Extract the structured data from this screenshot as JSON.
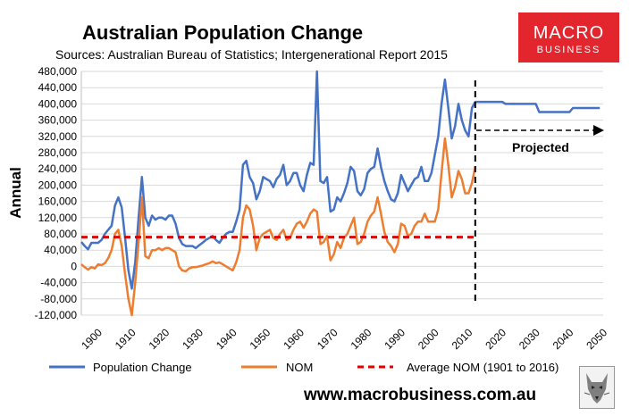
{
  "header": {
    "title": "Australian Population Change",
    "subtitle": "Sources: Australian Bureau of Statistics; Intergenerational Report 2015"
  },
  "brand": {
    "logo_top": "MACRO",
    "logo_bottom": "BUSINESS",
    "logo_color": "#e3262e",
    "url": "www.macrobusiness.com.au"
  },
  "colors": {
    "population_change": "#4472c4",
    "nom": "#ed7d31",
    "average": "#e00000",
    "grid": "#d9d9d9"
  },
  "chart_data": {
    "type": "line",
    "ylabel": "Annual",
    "ylim": [
      -120000,
      480000
    ],
    "xlim": [
      1900,
      2055
    ],
    "y_ticks": [
      "480,000",
      "440,000",
      "400,000",
      "360,000",
      "320,000",
      "280,000",
      "240,000",
      "200,000",
      "160,000",
      "120,000",
      "80,000",
      "40,000",
      "0",
      "-40,000",
      "-80,000",
      "-120,000"
    ],
    "x_ticks": [
      "1900",
      "1910",
      "1920",
      "1930",
      "1940",
      "1950",
      "1960",
      "1970",
      "1980",
      "1990",
      "2000",
      "2010",
      "2020",
      "2030",
      "2040",
      "2050"
    ],
    "grid": true,
    "legend_position": "bottom",
    "series": [
      {
        "name": "Population Change",
        "points": [
          [
            1900,
            60000
          ],
          [
            1901,
            50000
          ],
          [
            1902,
            42000
          ],
          [
            1903,
            58000
          ],
          [
            1904,
            58000
          ],
          [
            1905,
            58000
          ],
          [
            1906,
            65000
          ],
          [
            1907,
            80000
          ],
          [
            1908,
            90000
          ],
          [
            1909,
            100000
          ],
          [
            1910,
            150000
          ],
          [
            1911,
            170000
          ],
          [
            1912,
            145000
          ],
          [
            1913,
            70000
          ],
          [
            1914,
            -10000
          ],
          [
            1915,
            -55000
          ],
          [
            1916,
            10000
          ],
          [
            1917,
            120000
          ],
          [
            1918,
            220000
          ],
          [
            1919,
            120000
          ],
          [
            1920,
            100000
          ],
          [
            1921,
            125000
          ],
          [
            1922,
            115000
          ],
          [
            1923,
            120000
          ],
          [
            1924,
            120000
          ],
          [
            1925,
            115000
          ],
          [
            1926,
            125000
          ],
          [
            1927,
            125000
          ],
          [
            1928,
            105000
          ],
          [
            1929,
            70000
          ],
          [
            1930,
            55000
          ],
          [
            1931,
            50000
          ],
          [
            1932,
            50000
          ],
          [
            1933,
            50000
          ],
          [
            1934,
            45000
          ],
          [
            1935,
            52000
          ],
          [
            1936,
            58000
          ],
          [
            1937,
            65000
          ],
          [
            1938,
            70000
          ],
          [
            1939,
            75000
          ],
          [
            1940,
            65000
          ],
          [
            1941,
            58000
          ],
          [
            1942,
            70000
          ],
          [
            1943,
            80000
          ],
          [
            1944,
            85000
          ],
          [
            1945,
            85000
          ],
          [
            1946,
            110000
          ],
          [
            1947,
            140000
          ],
          [
            1948,
            250000
          ],
          [
            1949,
            260000
          ],
          [
            1950,
            220000
          ],
          [
            1951,
            205000
          ],
          [
            1952,
            165000
          ],
          [
            1953,
            185000
          ],
          [
            1954,
            220000
          ],
          [
            1955,
            215000
          ],
          [
            1956,
            210000
          ],
          [
            1957,
            195000
          ],
          [
            1958,
            215000
          ],
          [
            1959,
            225000
          ],
          [
            1960,
            250000
          ],
          [
            1961,
            200000
          ],
          [
            1962,
            210000
          ],
          [
            1963,
            230000
          ],
          [
            1964,
            230000
          ],
          [
            1965,
            200000
          ],
          [
            1966,
            185000
          ],
          [
            1967,
            225000
          ],
          [
            1968,
            255000
          ],
          [
            1969,
            250000
          ],
          [
            1970,
            480000
          ],
          [
            1971,
            210000
          ],
          [
            1972,
            205000
          ],
          [
            1973,
            220000
          ],
          [
            1974,
            135000
          ],
          [
            1975,
            140000
          ],
          [
            1976,
            170000
          ],
          [
            1977,
            160000
          ],
          [
            1978,
            180000
          ],
          [
            1979,
            205000
          ],
          [
            1980,
            245000
          ],
          [
            1981,
            235000
          ],
          [
            1982,
            185000
          ],
          [
            1983,
            175000
          ],
          [
            1984,
            190000
          ],
          [
            1985,
            230000
          ],
          [
            1986,
            240000
          ],
          [
            1987,
            245000
          ],
          [
            1988,
            290000
          ],
          [
            1989,
            245000
          ],
          [
            1990,
            210000
          ],
          [
            1991,
            185000
          ],
          [
            1992,
            165000
          ],
          [
            1993,
            160000
          ],
          [
            1994,
            180000
          ],
          [
            1995,
            225000
          ],
          [
            1996,
            205000
          ],
          [
            1997,
            185000
          ],
          [
            1998,
            200000
          ],
          [
            1999,
            215000
          ],
          [
            2000,
            220000
          ],
          [
            2001,
            245000
          ],
          [
            2002,
            210000
          ],
          [
            2003,
            210000
          ],
          [
            2004,
            230000
          ],
          [
            2005,
            275000
          ],
          [
            2006,
            320000
          ],
          [
            2007,
            400000
          ],
          [
            2008,
            460000
          ],
          [
            2009,
            390000
          ],
          [
            2010,
            315000
          ],
          [
            2011,
            345000
          ],
          [
            2012,
            400000
          ],
          [
            2013,
            360000
          ],
          [
            2014,
            335000
          ],
          [
            2015,
            320000
          ],
          [
            2016,
            390000
          ],
          [
            2017,
            405000
          ],
          [
            2020,
            405000
          ],
          [
            2025,
            405000
          ],
          [
            2026,
            400000
          ],
          [
            2035,
            400000
          ],
          [
            2036,
            380000
          ],
          [
            2045,
            380000
          ],
          [
            2046,
            390000
          ],
          [
            2054,
            390000
          ]
        ]
      },
      {
        "name": "NOM",
        "points": [
          [
            1900,
            5000
          ],
          [
            1901,
            -2000
          ],
          [
            1902,
            -8000
          ],
          [
            1903,
            -2000
          ],
          [
            1904,
            -5000
          ],
          [
            1905,
            5000
          ],
          [
            1906,
            3000
          ],
          [
            1907,
            8000
          ],
          [
            1908,
            20000
          ],
          [
            1909,
            40000
          ],
          [
            1910,
            80000
          ],
          [
            1911,
            90000
          ],
          [
            1912,
            50000
          ],
          [
            1913,
            -20000
          ],
          [
            1914,
            -80000
          ],
          [
            1915,
            -120000
          ],
          [
            1916,
            -40000
          ],
          [
            1917,
            60000
          ],
          [
            1918,
            170000
          ],
          [
            1919,
            25000
          ],
          [
            1920,
            20000
          ],
          [
            1921,
            40000
          ],
          [
            1922,
            40000
          ],
          [
            1923,
            45000
          ],
          [
            1924,
            40000
          ],
          [
            1925,
            45000
          ],
          [
            1926,
            45000
          ],
          [
            1927,
            40000
          ],
          [
            1928,
            35000
          ],
          [
            1929,
            0
          ],
          [
            1930,
            -10000
          ],
          [
            1931,
            -12000
          ],
          [
            1932,
            -5000
          ],
          [
            1933,
            -2000
          ],
          [
            1934,
            -2000
          ],
          [
            1935,
            0
          ],
          [
            1936,
            2000
          ],
          [
            1937,
            5000
          ],
          [
            1938,
            8000
          ],
          [
            1939,
            12000
          ],
          [
            1940,
            8000
          ],
          [
            1941,
            10000
          ],
          [
            1942,
            5000
          ],
          [
            1943,
            0
          ],
          [
            1944,
            -5000
          ],
          [
            1945,
            -10000
          ],
          [
            1946,
            10000
          ],
          [
            1947,
            40000
          ],
          [
            1948,
            120000
          ],
          [
            1949,
            150000
          ],
          [
            1950,
            140000
          ],
          [
            1951,
            100000
          ],
          [
            1952,
            40000
          ],
          [
            1953,
            70000
          ],
          [
            1954,
            80000
          ],
          [
            1955,
            85000
          ],
          [
            1956,
            90000
          ],
          [
            1957,
            70000
          ],
          [
            1958,
            65000
          ],
          [
            1959,
            80000
          ],
          [
            1960,
            90000
          ],
          [
            1961,
            65000
          ],
          [
            1962,
            70000
          ],
          [
            1963,
            90000
          ],
          [
            1964,
            105000
          ],
          [
            1965,
            110000
          ],
          [
            1966,
            95000
          ],
          [
            1967,
            110000
          ],
          [
            1968,
            130000
          ],
          [
            1969,
            140000
          ],
          [
            1970,
            135000
          ],
          [
            1971,
            55000
          ],
          [
            1972,
            60000
          ],
          [
            1973,
            75000
          ],
          [
            1974,
            15000
          ],
          [
            1975,
            30000
          ],
          [
            1976,
            60000
          ],
          [
            1977,
            45000
          ],
          [
            1978,
            70000
          ],
          [
            1979,
            80000
          ],
          [
            1980,
            100000
          ],
          [
            1981,
            120000
          ],
          [
            1982,
            55000
          ],
          [
            1983,
            60000
          ],
          [
            1984,
            80000
          ],
          [
            1985,
            110000
          ],
          [
            1986,
            125000
          ],
          [
            1987,
            135000
          ],
          [
            1988,
            170000
          ],
          [
            1989,
            130000
          ],
          [
            1990,
            85000
          ],
          [
            1991,
            60000
          ],
          [
            1992,
            50000
          ],
          [
            1993,
            35000
          ],
          [
            1994,
            55000
          ],
          [
            1995,
            105000
          ],
          [
            1996,
            100000
          ],
          [
            1997,
            75000
          ],
          [
            1998,
            80000
          ],
          [
            1999,
            100000
          ],
          [
            2000,
            110000
          ],
          [
            2001,
            110000
          ],
          [
            2002,
            130000
          ],
          [
            2003,
            110000
          ],
          [
            2004,
            110000
          ],
          [
            2005,
            110000
          ],
          [
            2006,
            140000
          ],
          [
            2007,
            230000
          ],
          [
            2008,
            315000
          ],
          [
            2009,
            250000
          ],
          [
            2010,
            170000
          ],
          [
            2011,
            195000
          ],
          [
            2012,
            235000
          ],
          [
            2013,
            215000
          ],
          [
            2014,
            180000
          ],
          [
            2015,
            180000
          ],
          [
            2016,
            205000
          ],
          [
            2017,
            245000
          ]
        ]
      },
      {
        "name": "Average NOM (1901 to 2016)",
        "points": [
          [
            1900,
            72000
          ],
          [
            2017,
            72000
          ]
        ]
      }
    ],
    "annotations": [
      {
        "text": "Projected"
      }
    ]
  }
}
